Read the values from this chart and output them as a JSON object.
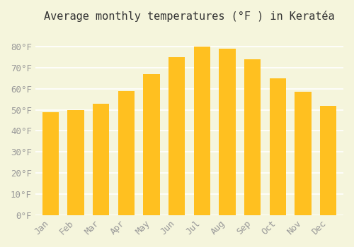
{
  "title": "Average monthly temperatures (°F ) in Keratéa",
  "months": [
    "Jan",
    "Feb",
    "Mar",
    "Apr",
    "May",
    "Jun",
    "Jul",
    "Aug",
    "Sep",
    "Oct",
    "Nov",
    "Dec"
  ],
  "values": [
    49,
    50,
    53,
    59,
    67,
    75,
    80,
    79,
    74,
    65,
    58.5,
    52
  ],
  "bar_color_top": "#FFC020",
  "bar_color_bottom": "#FFD870",
  "background_color": "#F5F5DC",
  "grid_color": "#FFFFFF",
  "ylim": [
    0,
    88
  ],
  "yticks": [
    0,
    10,
    20,
    30,
    40,
    50,
    60,
    70,
    80
  ],
  "ytick_labels": [
    "0°F",
    "10°F",
    "20°F",
    "30°F",
    "40°F",
    "50°F",
    "60°F",
    "70°F",
    "80°F"
  ],
  "title_fontsize": 11,
  "tick_fontsize": 9,
  "tick_color": "#999999",
  "axis_color": "#CCCCCC"
}
